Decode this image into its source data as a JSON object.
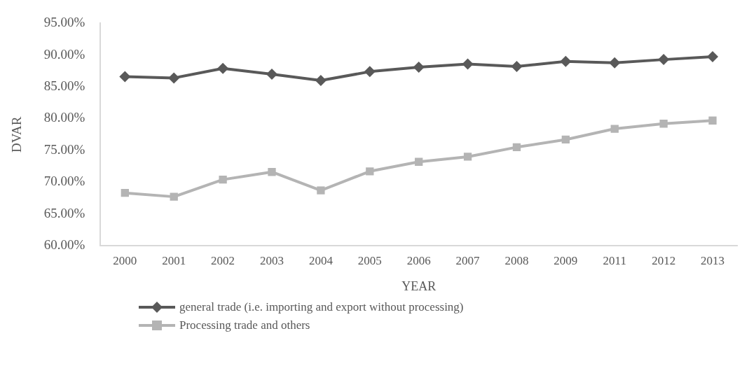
{
  "chart_data": {
    "type": "line",
    "xlabel": "YEAR",
    "ylabel": "DVAR",
    "categories": [
      "2000",
      "2001",
      "2002",
      "2003",
      "2004",
      "2005",
      "2006",
      "2007",
      "2008",
      "2009",
      "2011",
      "2012",
      "2013"
    ],
    "series": [
      {
        "name": "general trade (i.e. importing and export without processing)",
        "color": "#595959",
        "marker": "diamond",
        "values": [
          86.6,
          86.4,
          87.9,
          87.0,
          86.0,
          87.4,
          88.1,
          88.6,
          88.2,
          89.0,
          88.8,
          89.3,
          89.75
        ]
      },
      {
        "name": "Processing trade and others",
        "color": "#b4b4b4",
        "marker": "square",
        "values": [
          68.3,
          67.7,
          70.4,
          71.6,
          68.7,
          71.7,
          73.2,
          74.0,
          75.5,
          76.7,
          78.4,
          79.2,
          79.7
        ]
      }
    ],
    "ylim": [
      60,
      95
    ],
    "yticks": [
      {
        "value": 60,
        "label": "60.00%"
      },
      {
        "value": 65,
        "label": "65.00%"
      },
      {
        "value": 70,
        "label": "70.00%"
      },
      {
        "value": 75,
        "label": "75.00%"
      },
      {
        "value": 80,
        "label": "80.00%"
      },
      {
        "value": 85,
        "label": "85.00%"
      },
      {
        "value": 90,
        "label": "90.00%"
      },
      {
        "value": 95,
        "label": "95.00%"
      }
    ],
    "grid": false,
    "legend": "bottom left",
    "line_style": "solid"
  }
}
